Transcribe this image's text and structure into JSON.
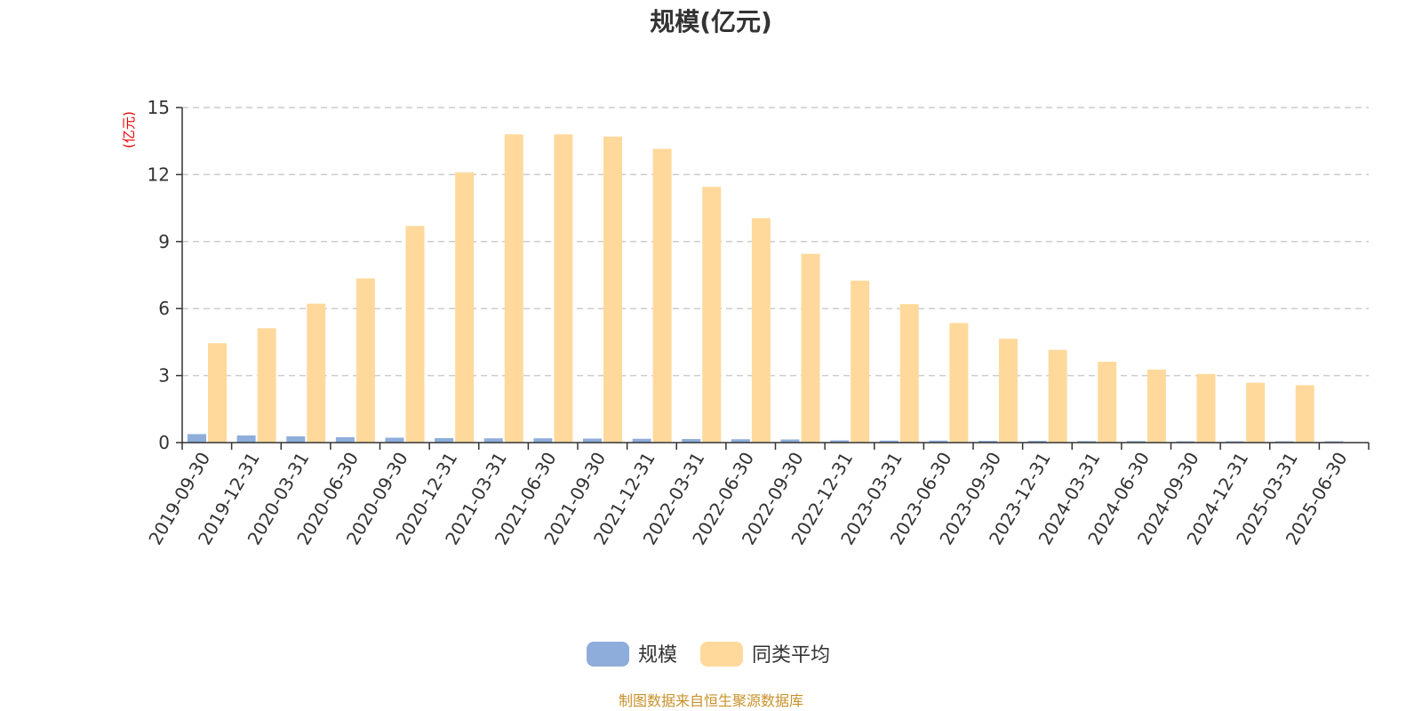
{
  "chart_data": {
    "type": "bar",
    "title": "规模(亿元)",
    "ylabel": "(亿元)",
    "xlabel": "",
    "ylim": [
      0,
      15
    ],
    "yticks": [
      0,
      3,
      6,
      9,
      12,
      15
    ],
    "grid": true,
    "legend_position": "bottom",
    "categories": [
      "2019-09-30",
      "2019-12-31",
      "2020-03-31",
      "2020-06-30",
      "2020-09-30",
      "2020-12-31",
      "2021-03-31",
      "2021-06-30",
      "2021-09-30",
      "2021-12-31",
      "2022-03-31",
      "2022-06-30",
      "2022-09-30",
      "2022-12-31",
      "2023-03-31",
      "2023-06-30",
      "2023-09-30",
      "2023-12-31",
      "2024-03-31",
      "2024-06-30",
      "2024-09-30",
      "2024-12-31",
      "2025-03-31",
      "2025-06-30"
    ],
    "series": [
      {
        "name": "规模",
        "color": "#8eaddb",
        "values": [
          0.38,
          0.32,
          0.28,
          0.24,
          0.22,
          0.2,
          0.19,
          0.19,
          0.18,
          0.17,
          0.16,
          0.15,
          0.14,
          0.1,
          0.09,
          0.09,
          0.08,
          0.08,
          0.07,
          0.07,
          0.06,
          0.06,
          0.06,
          0.06
        ]
      },
      {
        "name": "同类平均",
        "color": "#ffd99b",
        "values": [
          4.45,
          5.12,
          6.22,
          7.35,
          9.7,
          12.1,
          13.8,
          13.8,
          13.7,
          13.15,
          11.45,
          10.05,
          8.45,
          7.25,
          6.2,
          5.35,
          4.65,
          4.15,
          3.62,
          3.27,
          3.07,
          2.68,
          2.57,
          null
        ]
      }
    ]
  },
  "footer": {
    "source": "制图数据来自恒生聚源数据库"
  }
}
